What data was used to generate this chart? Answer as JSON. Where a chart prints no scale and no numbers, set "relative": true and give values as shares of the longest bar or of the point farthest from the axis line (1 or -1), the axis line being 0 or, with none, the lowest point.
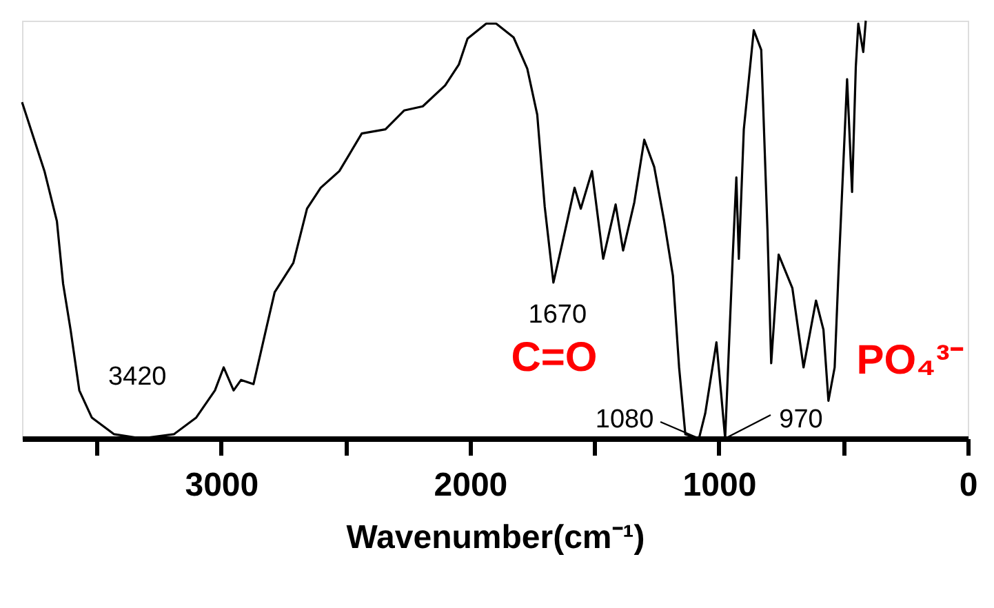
{
  "chart_data": {
    "type": "line",
    "relative": true,
    "xlabel": "Wavenumber(cm⁻¹)",
    "xlim": [
      3800,
      0
    ],
    "xticks": [
      {
        "value": 3500,
        "label": null
      },
      3000,
      {
        "value": 2500,
        "label": null
      },
      2000,
      {
        "value": 1500,
        "label": null
      },
      1000,
      {
        "value": 500,
        "label": null
      },
      0
    ],
    "grid": false,
    "marker": "none",
    "line_style": "solid",
    "series": [
      {
        "color": "#000000",
        "x": [
          3800,
          3710,
          3660,
          3635,
          3605,
          3570,
          3520,
          3430,
          3320,
          3190,
          3100,
          3025,
          2990,
          2950,
          2920,
          2870,
          2820,
          2785,
          2710,
          2655,
          2600,
          2525,
          2435,
          2340,
          2265,
          2190,
          2100,
          2045,
          2010,
          1935,
          1895,
          1825,
          1770,
          1730,
          1700,
          1665,
          1630,
          1580,
          1555,
          1510,
          1465,
          1415,
          1385,
          1340,
          1300,
          1260,
          1220,
          1185,
          1160,
          1135,
          1080,
          1055,
          1010,
          990,
          975,
          945,
          930,
          920,
          900,
          860,
          830,
          805,
          790,
          760,
          705,
          660,
          610,
          580,
          560,
          535,
          520,
          485,
          465,
          450,
          440,
          420,
          410
        ],
        "values": [
          0.805,
          0.64,
          0.52,
          0.37,
          0.26,
          0.115,
          0.05,
          0.01,
          0.0,
          0.01,
          0.05,
          0.115,
          0.17,
          0.115,
          0.14,
          0.13,
          0.26,
          0.35,
          0.42,
          0.55,
          0.6,
          0.64,
          0.73,
          0.74,
          0.785,
          0.795,
          0.845,
          0.895,
          0.957,
          0.993,
          0.993,
          0.96,
          0.885,
          0.775,
          0.555,
          0.373,
          0.465,
          0.6,
          0.55,
          0.64,
          0.43,
          0.56,
          0.45,
          0.565,
          0.715,
          0.65,
          0.52,
          0.39,
          0.17,
          0.01,
          0.0,
          0.06,
          0.23,
          0.1,
          0.0,
          0.43,
          0.625,
          0.43,
          0.74,
          0.977,
          0.93,
          0.5,
          0.18,
          0.44,
          0.36,
          0.17,
          0.33,
          0.26,
          0.09,
          0.17,
          0.39,
          0.86,
          0.59,
          0.89,
          0.993,
          0.925,
          1.0
        ]
      }
    ],
    "annotations": [
      {
        "text": "3420",
        "x": 3420,
        "y": 0.0
      },
      {
        "text": "1670",
        "x": 1665,
        "y": 0.373
      },
      {
        "text": "1080",
        "x": 1080,
        "y": 0.0
      },
      {
        "text": "970",
        "x": 975,
        "y": 0.0
      },
      "C=O",
      "PO₄³⁻"
    ]
  }
}
